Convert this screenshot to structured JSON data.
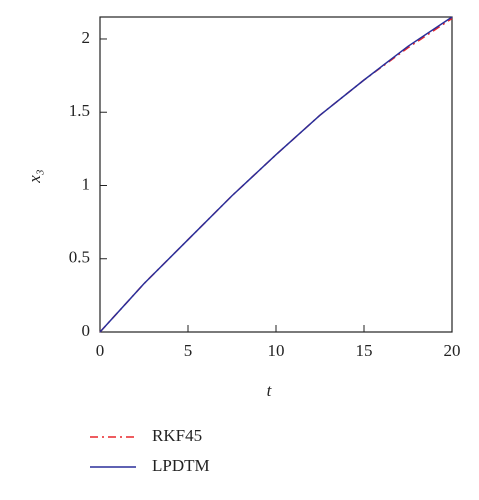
{
  "chart_data": {
    "type": "line",
    "x_label": "t",
    "y_label": "x₃",
    "x": [
      0,
      2.5,
      5,
      7.5,
      10,
      12.5,
      15,
      17.5,
      20
    ],
    "series": [
      {
        "name": "RKF45",
        "color": "#e8262b",
        "style": "dash-dot",
        "values": [
          0,
          0.33,
          0.63,
          0.93,
          1.21,
          1.48,
          1.72,
          1.94,
          2.14
        ]
      },
      {
        "name": "LPDTM",
        "color": "#2a2f9a",
        "style": "solid",
        "values": [
          0,
          0.33,
          0.63,
          0.93,
          1.21,
          1.48,
          1.72,
          1.95,
          2.15
        ]
      }
    ],
    "xlim": [
      0,
      20
    ],
    "ylim": [
      0,
      2.15
    ],
    "xticks": [
      0,
      5,
      10,
      15,
      20
    ],
    "yticks": [
      0,
      0.5,
      1,
      1.5,
      2
    ],
    "grid": false,
    "legend": "bottom"
  }
}
